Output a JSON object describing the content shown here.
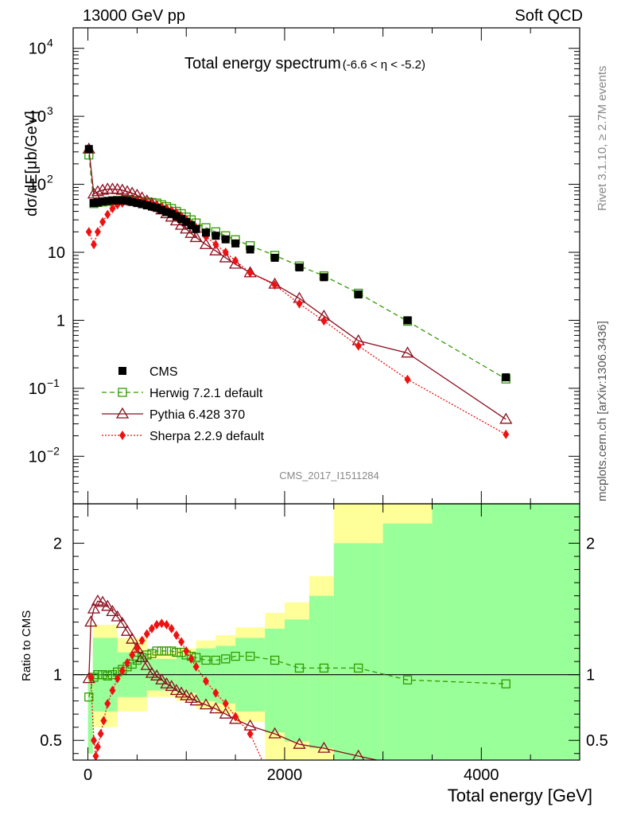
{
  "header": {
    "left": "13000 GeV pp",
    "right": "Soft QCD"
  },
  "side_labels": {
    "rivet": "Rivet 3.1.10, ≥ 2.7M events",
    "source": "mcplots.cern.ch [arXiv:1306.3436]"
  },
  "chart_data": [
    {
      "panel": "main",
      "type": "line",
      "title": "Total energy spectrum",
      "title_range": "(-6.6 < η < -5.2)",
      "ylabel": "dσ/dE[μb/GeV]",
      "xlabel": "",
      "yscale": "log",
      "ylim": [
        0.002,
        20000
      ],
      "xlim": [
        -150,
        5000
      ],
      "analysis_label": "CMS_2017_I1511284",
      "y_ticks": [
        {
          "value": 10000,
          "label": "10",
          "exp": "4"
        },
        {
          "value": 1000,
          "label": "10",
          "exp": "3"
        },
        {
          "value": 100,
          "label": "10",
          "exp": "2"
        },
        {
          "value": 10,
          "label": "10",
          "exp": ""
        },
        {
          "value": 1,
          "label": "1",
          "exp": ""
        },
        {
          "value": 0.1,
          "label": "10",
          "exp": "−1"
        },
        {
          "value": 0.01,
          "label": "10",
          "exp": "−2"
        }
      ],
      "legend": {
        "placement": "lower-left",
        "entries": [
          {
            "name": "CMS",
            "color": "#000000",
            "marker": "square-filled",
            "dash": "none"
          },
          {
            "name": "Herwig 7.2.1 default",
            "color": "#339900",
            "marker": "square-open",
            "dash": "dashed"
          },
          {
            "name": "Pythia 6.428 370",
            "color": "#8b0f1e",
            "marker": "triangle-open",
            "dash": "solid"
          },
          {
            "name": "Sherpa 2.2.9 default",
            "color": "#ee1111",
            "marker": "diamond-filled",
            "dash": "dotted"
          }
        ]
      },
      "x": [
        10,
        60,
        100,
        150,
        200,
        250,
        300,
        350,
        400,
        450,
        500,
        550,
        600,
        650,
        700,
        750,
        800,
        850,
        900,
        950,
        1000,
        1050,
        1100,
        1200,
        1300,
        1400,
        1500,
        1650,
        1900,
        2150,
        2400,
        2750,
        3250,
        4250
      ],
      "series": [
        {
          "name": "CMS",
          "values": [
            330,
            53,
            54,
            56,
            57,
            58,
            58,
            58,
            57,
            55,
            53,
            51,
            49,
            47,
            45,
            42,
            39,
            37,
            34,
            31,
            28,
            25,
            22,
            19.5,
            17.5,
            15.5,
            13.5,
            11,
            8.3,
            6,
            4.3,
            2.4,
            1.0,
            0.145
          ]
        },
        {
          "name": "Herwig 7.2.1 default",
          "values": [
            270,
            52,
            54,
            55,
            56,
            57,
            58,
            58,
            58,
            58,
            57,
            56,
            55,
            54,
            53,
            50,
            47,
            44,
            40,
            37,
            33,
            30,
            27,
            23,
            20,
            17.5,
            15.3,
            12.5,
            9,
            6.3,
            4.5,
            2.5,
            0.97,
            0.137
          ]
        },
        {
          "name": "Pythia 6.428 370",
          "values": [
            330,
            72,
            78,
            82,
            85,
            85,
            84,
            82,
            78,
            74,
            69,
            63,
            57,
            52,
            47,
            42,
            37,
            33,
            29,
            25,
            22,
            19,
            16.5,
            13,
            10.5,
            8.3,
            6.7,
            5,
            3.4,
            2.1,
            1.15,
            0.5,
            0.33,
            0.035
          ]
        },
        {
          "name": "Sherpa 2.2.9 default",
          "values": [
            20,
            13,
            20,
            28,
            36,
            44,
            50,
            53,
            56,
            56,
            56,
            55,
            53,
            51,
            49,
            47,
            44,
            41,
            38,
            34,
            30,
            26,
            23,
            17,
            13,
            10,
            7.5,
            5,
            3.3,
            1.75,
            0.98,
            0.42,
            0.135,
            0.021
          ]
        }
      ]
    },
    {
      "panel": "ratio",
      "type": "line",
      "ylabel": "Ratio to CMS",
      "xlabel": "Total energy [GeV]",
      "ylim": [
        0.35,
        2.3
      ],
      "xlim": [
        -150,
        5000
      ],
      "x_ticks": [
        0,
        2000,
        4000
      ],
      "y_ticks": [
        0.5,
        1,
        2
      ],
      "reference": 1,
      "bands": {
        "yellow": "#ffff99",
        "green": "#99ff99",
        "bins": [
          {
            "x": [
              0,
              50
            ],
            "lo": [
              0.4,
              0.4
            ],
            "hi": [
              1.0,
              1.0
            ]
          },
          {
            "x": [
              50,
              300
            ],
            "lo": [
              0.6,
              0.72
            ],
            "hi": [
              1.38,
              1.28
            ]
          },
          {
            "x": [
              300,
              600
            ],
            "lo": [
              0.72,
              0.83
            ],
            "hi": [
              1.28,
              1.17
            ]
          },
          {
            "x": [
              600,
              900
            ],
            "lo": [
              0.83,
              0.88
            ],
            "hi": [
              1.17,
              1.12
            ]
          },
          {
            "x": [
              900,
              1100
            ],
            "lo": [
              0.8,
              0.86
            ],
            "hi": [
              1.2,
              1.14
            ]
          },
          {
            "x": [
              1100,
              1300
            ],
            "lo": [
              0.74,
              0.8
            ],
            "hi": [
              1.26,
              1.2
            ]
          },
          {
            "x": [
              1300,
              1500
            ],
            "lo": [
              0.7,
              0.78
            ],
            "hi": [
              1.3,
              1.22
            ]
          },
          {
            "x": [
              1500,
              1800
            ],
            "lo": [
              0.64,
              0.72
            ],
            "hi": [
              1.36,
              1.28
            ]
          },
          {
            "x": [
              1800,
              2000
            ],
            "lo": [
              0.35,
              0.56
            ],
            "hi": [
              1.47,
              1.35
            ]
          },
          {
            "x": [
              2000,
              2250
            ],
            "lo": [
              0.35,
              0.49
            ],
            "hi": [
              1.55,
              1.42
            ]
          },
          {
            "x": [
              2250,
              2500
            ],
            "lo": [
              0.35,
              0.44
            ],
            "hi": [
              1.75,
              1.6
            ]
          },
          {
            "x": [
              2500,
              3000
            ],
            "lo": [
              0.35,
              0.35
            ],
            "hi": [
              2.3,
              2.0
            ]
          },
          {
            "x": [
              3000,
              3500
            ],
            "lo": [
              0.35,
              0.35
            ],
            "hi": [
              2.3,
              2.15
            ]
          },
          {
            "x": [
              3500,
              5000
            ],
            "lo": [
              0.35,
              0.35
            ],
            "hi": [
              2.3,
              2.3
            ]
          }
        ]
      },
      "series": [
        {
          "name": "Herwig 7.2.1 default",
          "x": [
            10,
            60,
            100,
            150,
            200,
            250,
            300,
            350,
            400,
            450,
            500,
            550,
            600,
            650,
            700,
            750,
            800,
            850,
            900,
            950,
            1000,
            1050,
            1100,
            1200,
            1300,
            1400,
            1500,
            1650,
            1900,
            2150,
            2400,
            2750,
            3250,
            4250
          ],
          "values": [
            0.83,
            0.98,
            1.0,
            1.0,
            0.99,
            1.0,
            1.02,
            1.04,
            1.06,
            1.08,
            1.11,
            1.13,
            1.15,
            1.16,
            1.18,
            1.18,
            1.18,
            1.18,
            1.17,
            1.17,
            1.15,
            1.14,
            1.13,
            1.11,
            1.11,
            1.12,
            1.14,
            1.14,
            1.11,
            1.05,
            1.05,
            1.05,
            0.96,
            0.93
          ]
        },
        {
          "name": "Pythia 6.428 370",
          "x": [
            10,
            30,
            60,
            100,
            150,
            200,
            250,
            300,
            350,
            400,
            450,
            500,
            550,
            600,
            650,
            700,
            750,
            800,
            850,
            900,
            950,
            1000,
            1050,
            1100,
            1200,
            1300,
            1400,
            1500,
            1650,
            1900,
            2150,
            2400,
            2750,
            3250
          ],
          "values": [
            0.97,
            1.4,
            1.5,
            1.56,
            1.55,
            1.52,
            1.48,
            1.44,
            1.39,
            1.33,
            1.27,
            1.2,
            1.13,
            1.07,
            1.01,
            0.99,
            0.96,
            0.93,
            0.91,
            0.88,
            0.86,
            0.84,
            0.82,
            0.8,
            0.77,
            0.74,
            0.7,
            0.66,
            0.61,
            0.55,
            0.47,
            0.44,
            0.38,
            0.3
          ]
        },
        {
          "name": "Sherpa 2.2.9 default",
          "x": [
            30,
            60,
            80,
            100,
            130,
            160,
            200,
            250,
            300,
            350,
            400,
            450,
            500,
            550,
            600,
            650,
            700,
            750,
            800,
            850,
            900,
            950,
            1000,
            1050,
            1100,
            1200,
            1300,
            1400,
            1500,
            1650,
            1800
          ],
          "values": [
            0.98,
            0.5,
            0.38,
            0.45,
            0.55,
            0.65,
            0.78,
            0.88,
            0.97,
            1.03,
            1.09,
            1.15,
            1.2,
            1.26,
            1.31,
            1.35,
            1.38,
            1.39,
            1.38,
            1.35,
            1.3,
            1.25,
            1.18,
            1.12,
            1.06,
            0.95,
            0.86,
            0.78,
            0.68,
            0.55,
            0.3
          ]
        }
      ]
    }
  ]
}
